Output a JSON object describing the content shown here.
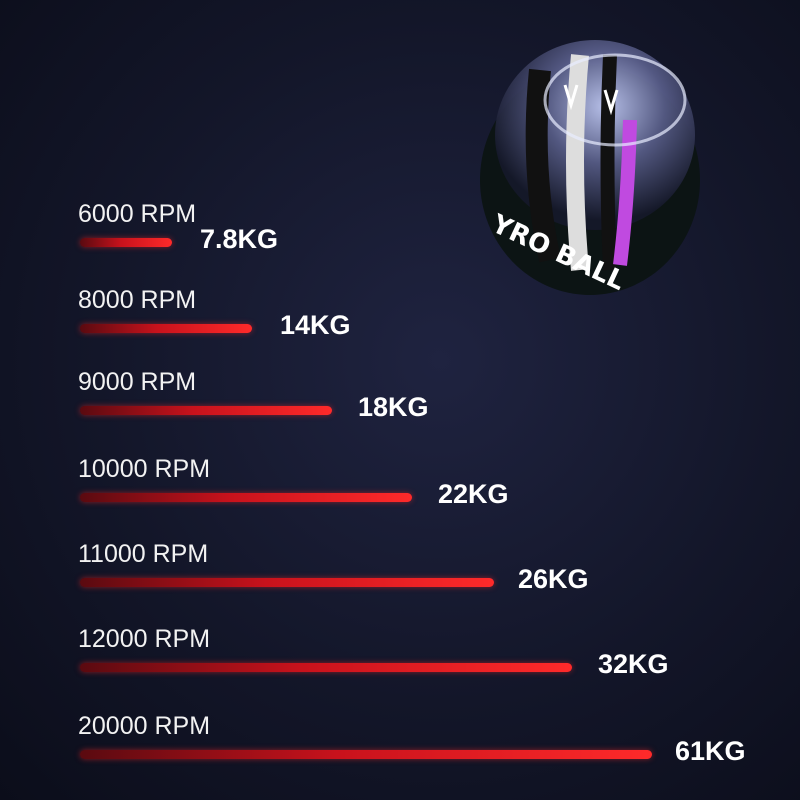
{
  "product": {
    "logo_text": "YRO BALL",
    "colors": {
      "bar": "#d0141e",
      "background": "#151829"
    }
  },
  "rows": [
    {
      "rpm": "6000 RPM",
      "kg": "7.8KG"
    },
    {
      "rpm": "8000 RPM",
      "kg": "14KG"
    },
    {
      "rpm": "9000 RPM",
      "kg": "18KG"
    },
    {
      "rpm": "10000 RPM",
      "kg": "22KG"
    },
    {
      "rpm": "11000 RPM",
      "kg": "26KG"
    },
    {
      "rpm": "12000 RPM",
      "kg": "32KG"
    },
    {
      "rpm": "20000 RPM",
      "kg": "61KG"
    }
  ]
}
